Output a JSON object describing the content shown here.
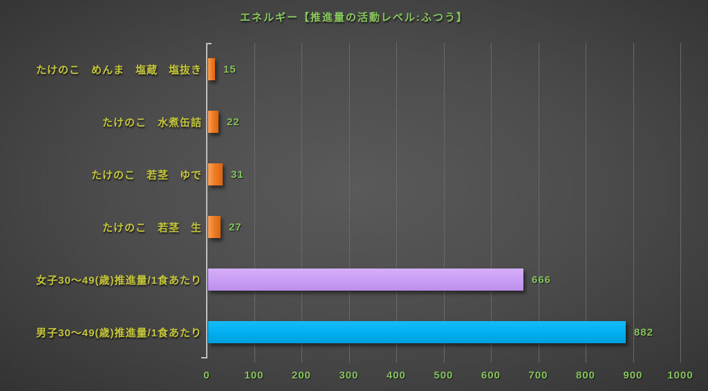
{
  "title": "エネルギー【推進量の活動レベル:ふつう】",
  "chart_data": {
    "type": "bar",
    "orientation": "horizontal",
    "title": "エネルギー【推進量の活動レベル:ふつう】",
    "categories": [
      "たけのこ　めんま　塩蔵　塩抜き",
      "たけのこ　水煮缶詰",
      "たけのこ　若茎　ゆで",
      "たけのこ　若茎　生",
      "女子30〜49(歳)推進量/1食あたり",
      "男子30〜49(歳)推進量/1食あたり"
    ],
    "values": [
      15,
      22,
      31,
      27,
      666,
      882
    ],
    "bar_color_keys": [
      "orange",
      "orange",
      "orange",
      "orange",
      "purple",
      "blue"
    ],
    "xlim": [
      0,
      1000
    ],
    "x_ticks": [
      0,
      100,
      200,
      300,
      400,
      500,
      600,
      700,
      800,
      900,
      1000
    ],
    "grid": true,
    "legend": null,
    "value_labels_shown": true
  },
  "colors": {
    "title_text": "#8ac95f",
    "category_text": "#c6c63c",
    "value_text": "#86c45d",
    "tick_text": "#86c45d",
    "bar_orange": "#ef7d26",
    "bar_orange_light": "#f9a35b",
    "bar_orange_dark": "#dd650f",
    "bar_purple": "#c89df4",
    "bar_purple_light": "#d6aef9",
    "bar_purple_dark": "#bc8eec",
    "bar_blue": "#00aeef",
    "bar_blue_light": "#16bbf6",
    "bar_blue_dark": "#009fdd",
    "gridline": "#6a6a6a",
    "axis": "#c0c0c0"
  }
}
